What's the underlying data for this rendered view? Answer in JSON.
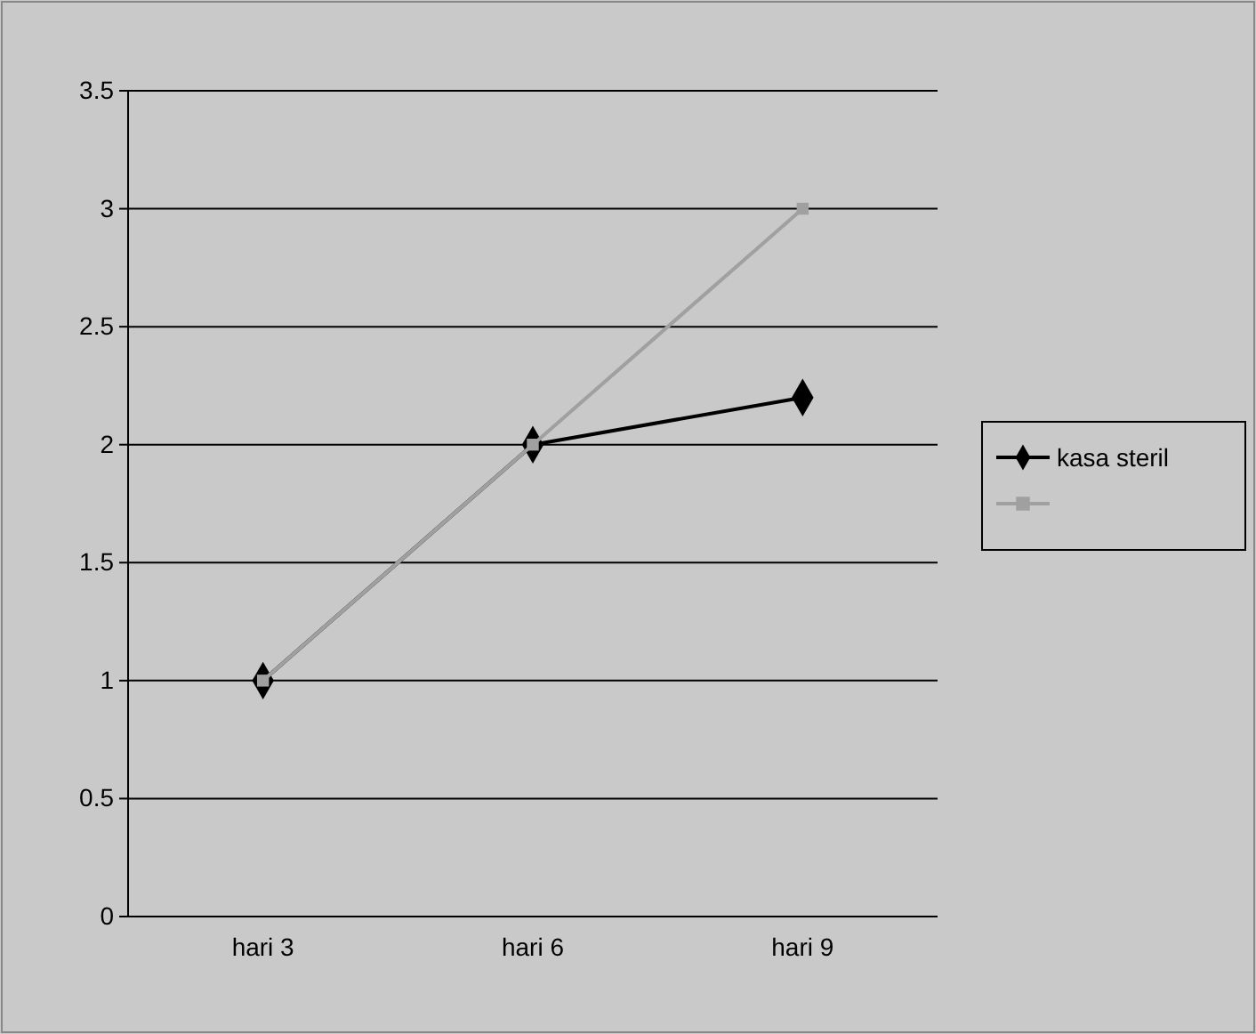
{
  "chart_data": {
    "type": "line",
    "categories": [
      "hari 3",
      "hari 6",
      "hari 9"
    ],
    "series": [
      {
        "name": "kasa steril",
        "color": "#000000",
        "values": [
          1,
          2,
          2.2
        ],
        "marker": "diamond"
      },
      {
        "color": "#a0a0a0",
        "values": [
          1,
          2,
          3
        ],
        "marker": "square"
      }
    ],
    "ylim": [
      0,
      3.5
    ],
    "yticks": [
      0,
      0.5,
      1,
      1.5,
      2,
      2.5,
      3,
      3.5
    ],
    "grid": "y",
    "legend": "right"
  }
}
